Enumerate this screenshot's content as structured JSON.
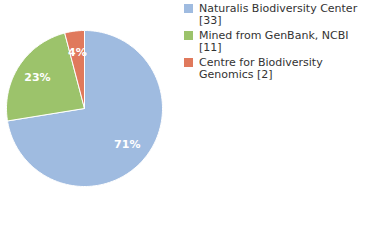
{
  "chart_data": {
    "type": "pie",
    "categories": [
      "Naturalis Biodiversity Center [33]",
      "Mined from GenBank, NCBI [11]",
      "Centre for Biodiversity Genomics [2]"
    ],
    "values": [
      71,
      23,
      4
    ],
    "value_labels": [
      "71%",
      "23%",
      "4%"
    ],
    "colors": [
      "#9fbbe0",
      "#9cc36b",
      "#e0795c"
    ],
    "data_labels": true,
    "legend": "top-right"
  }
}
